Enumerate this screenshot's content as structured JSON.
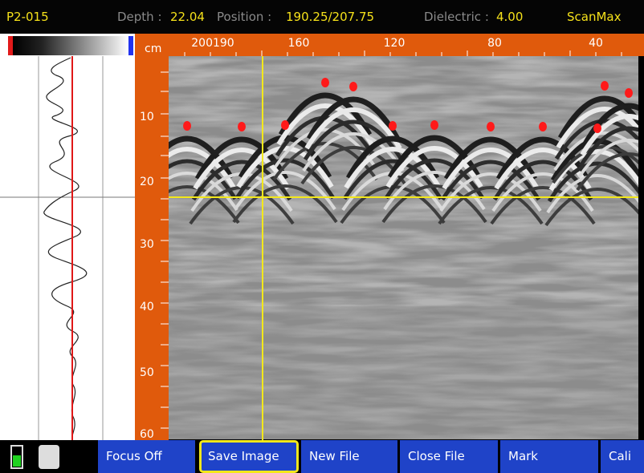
{
  "status_bar": {
    "file": "P2-015",
    "depth_label": "Depth :",
    "depth": "22.04",
    "position_label": "Position :",
    "position": "190.25/207.75",
    "dielectric_label": "Dielectric :",
    "dielectric": "4.00",
    "mode": "ScanMax"
  },
  "horizontal_ruler": {
    "unit": "cm",
    "labels": [
      "200190",
      "160",
      "120",
      "80",
      "40"
    ]
  },
  "vertical_ruler": {
    "labels": [
      "10",
      "20",
      "30",
      "40",
      "50",
      "60"
    ]
  },
  "toolbar": {
    "buttons": [
      "Focus Off",
      "Save Image",
      "New File",
      "Close File",
      "Mark",
      "Cali"
    ]
  }
}
